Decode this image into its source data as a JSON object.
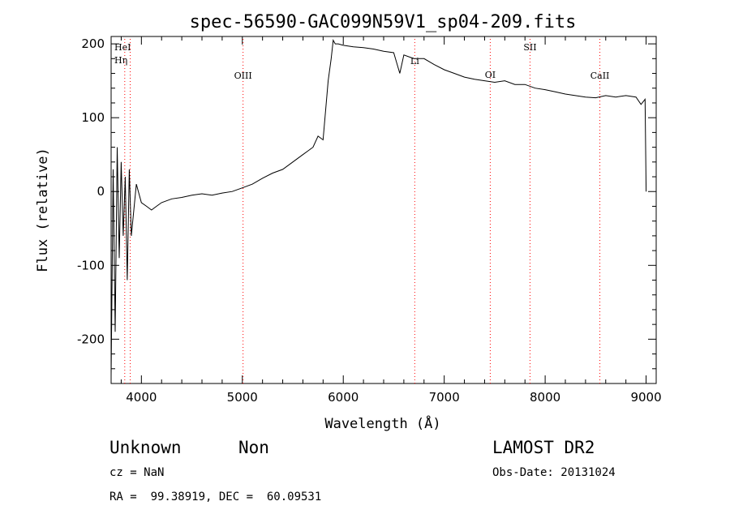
{
  "chart_data": {
    "type": "line",
    "title": "spec-56590-GAC099N59V1_sp04-209.fits",
    "xlabel": "Wavelength (Å)",
    "ylabel": "Flux (relative)",
    "xlim": [
      3700,
      9100
    ],
    "ylim": [
      -260,
      210
    ],
    "xticks": [
      4000,
      5000,
      6000,
      7000,
      8000,
      9000
    ],
    "yticks": [
      -200,
      -100,
      0,
      100,
      200
    ],
    "grid": false,
    "line_color": "#000000",
    "marker_color": "#ff0000",
    "series": [
      {
        "x": [
          3700,
          3720,
          3740,
          3760,
          3780,
          3800,
          3820,
          3840,
          3860,
          3880,
          3900,
          3950,
          4000,
          4050,
          4100,
          4150,
          4200,
          4300,
          4400,
          4500,
          4600,
          4700,
          4800,
          4900,
          5000,
          5100,
          5200,
          5300,
          5400,
          5500,
          5600,
          5700,
          5750,
          5800,
          5850,
          5880,
          5900,
          5920,
          5950,
          6000,
          6100,
          6200,
          6300,
          6400,
          6500,
          6560,
          6600,
          6700,
          6800,
          6900,
          7000,
          7100,
          7200,
          7300,
          7400,
          7500,
          7600,
          7700,
          7800,
          7900,
          8000,
          8100,
          8200,
          8300,
          8400,
          8500,
          8600,
          8700,
          8800,
          8900,
          8950,
          8990,
          9000
        ],
        "y": [
          -250,
          30,
          -190,
          60,
          -90,
          40,
          -60,
          20,
          -120,
          30,
          -60,
          10,
          -15,
          -20,
          -25,
          -20,
          -15,
          -10,
          -8,
          -5,
          -3,
          -5,
          -2,
          0,
          5,
          10,
          18,
          25,
          30,
          40,
          50,
          60,
          75,
          70,
          150,
          180,
          205,
          200,
          200,
          198,
          196,
          195,
          193,
          190,
          188,
          160,
          185,
          180,
          180,
          172,
          165,
          160,
          155,
          152,
          150,
          148,
          150,
          145,
          145,
          140,
          138,
          135,
          132,
          130,
          128,
          127,
          130,
          128,
          130,
          128,
          118,
          125,
          0
        ]
      }
    ],
    "lines": [
      {
        "name": "HeI",
        "x": 3889
      },
      {
        "name": "Hη",
        "x": 3835
      },
      {
        "name": "OIII",
        "x": 5007
      },
      {
        "name": "Li",
        "x": 6708
      },
      {
        "name": "OI",
        "x": 7456
      },
      {
        "name": "SII",
        "x": 7850
      },
      {
        "name": "CaII",
        "x": 8542
      }
    ]
  },
  "info": {
    "class_label": "Unknown",
    "subclass_label": "Non",
    "cz_text": "cz = NaN",
    "radec_text": "RA =  99.38919, DEC =  60.09531",
    "survey": "LAMOST DR2",
    "obs_date": "Obs-Date: 20131024"
  }
}
